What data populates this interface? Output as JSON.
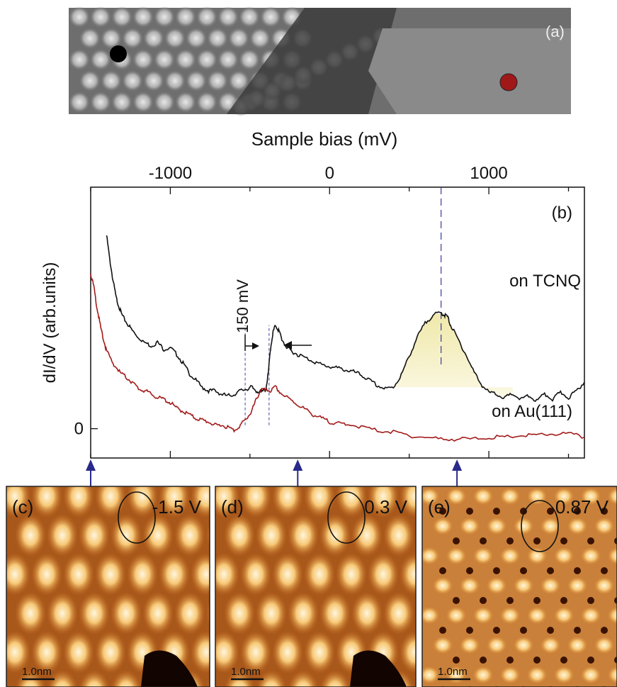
{
  "panel_a": {
    "label": "(a)",
    "marker_colors": {
      "tcnq": "#000000",
      "au": "#a01818"
    }
  },
  "chart_data": {
    "type": "line",
    "panel_label": "(b)",
    "xlabel": "Sample bias (mV)",
    "ylabel": "dI/dV (arb.units)",
    "xlim": [
      -1500,
      1600
    ],
    "ylim": [
      -0.17,
      1.4
    ],
    "x_ticks": [
      -1000,
      0,
      1000
    ],
    "x_tick_labels": [
      "-1000",
      "0",
      "1000"
    ],
    "y_tick_labels": [
      "0"
    ],
    "y_ticks": [
      0
    ],
    "annotation": "150 mV",
    "series": [
      {
        "name": "on TCNQ",
        "color": "#111111",
        "x": [
          -1400,
          -1380,
          -1360,
          -1340,
          -1320,
          -1300,
          -1270,
          -1240,
          -1200,
          -1160,
          -1120,
          -1080,
          -1040,
          -1000,
          -960,
          -920,
          -880,
          -840,
          -800,
          -760,
          -720,
          -680,
          -640,
          -600,
          -560,
          -520,
          -490,
          -460,
          -430,
          -400,
          -385,
          -370,
          -355,
          -340,
          -320,
          -300,
          -270,
          -240,
          -200,
          -150,
          -100,
          -50,
          0,
          50,
          100,
          150,
          200,
          250,
          300,
          350,
          400,
          450,
          500,
          550,
          600,
          650,
          700,
          720,
          740,
          760,
          800,
          850,
          900,
          950,
          1000,
          1050,
          1100,
          1150,
          1200,
          1250,
          1300,
          1350,
          1400,
          1450,
          1500,
          1550,
          1600
        ],
        "y": [
          1.12,
          0.98,
          0.86,
          0.76,
          0.7,
          0.65,
          0.61,
          0.57,
          0.53,
          0.5,
          0.48,
          0.5,
          0.46,
          0.47,
          0.43,
          0.38,
          0.32,
          0.28,
          0.24,
          0.22,
          0.22,
          0.2,
          0.19,
          0.2,
          0.22,
          0.23,
          0.24,
          0.22,
          0.21,
          0.23,
          0.32,
          0.47,
          0.56,
          0.6,
          0.57,
          0.52,
          0.47,
          0.45,
          0.43,
          0.41,
          0.39,
          0.37,
          0.36,
          0.35,
          0.34,
          0.33,
          0.31,
          0.28,
          0.25,
          0.23,
          0.24,
          0.31,
          0.42,
          0.53,
          0.61,
          0.66,
          0.67,
          0.66,
          0.65,
          0.6,
          0.53,
          0.44,
          0.34,
          0.26,
          0.21,
          0.2,
          0.18,
          0.2,
          0.17,
          0.19,
          0.16,
          0.2,
          0.17,
          0.21,
          0.18,
          0.22,
          0.27
        ]
      },
      {
        "name": "on Au(111)",
        "color": "#a31a1a",
        "x": [
          -1500,
          -1480,
          -1460,
          -1440,
          -1420,
          -1400,
          -1360,
          -1320,
          -1280,
          -1240,
          -1200,
          -1160,
          -1120,
          -1080,
          -1040,
          -1000,
          -960,
          -920,
          -880,
          -840,
          -800,
          -760,
          -720,
          -680,
          -640,
          -600,
          -560,
          -520,
          -490,
          -460,
          -430,
          -400,
          -370,
          -340,
          -300,
          -250,
          -200,
          -150,
          -100,
          -50,
          0,
          50,
          100,
          200,
          300,
          400,
          500,
          600,
          700,
          800,
          900,
          1000,
          1100,
          1200,
          1300,
          1400,
          1500,
          1600
        ],
        "y": [
          0.9,
          0.82,
          0.7,
          0.6,
          0.52,
          0.45,
          0.38,
          0.33,
          0.3,
          0.27,
          0.23,
          0.22,
          0.2,
          0.18,
          0.17,
          0.15,
          0.12,
          0.1,
          0.08,
          0.06,
          0.05,
          0.04,
          0.02,
          0.02,
          0.01,
          -0.01,
          0.02,
          0.06,
          0.1,
          0.17,
          0.23,
          0.22,
          0.22,
          0.24,
          0.2,
          0.17,
          0.14,
          0.11,
          0.08,
          0.06,
          0.04,
          0.03,
          0.03,
          0.01,
          -0.01,
          -0.02,
          -0.04,
          -0.05,
          -0.06,
          -0.06,
          -0.06,
          -0.05,
          -0.05,
          -0.04,
          -0.04,
          -0.03,
          -0.03,
          -0.05
        ]
      }
    ],
    "peak_marker_x": 700,
    "dashed_lines_x": [
      -530,
      -380
    ]
  },
  "panel_c": {
    "label": "(c)",
    "bias": "-1.5 V",
    "scale": "1.0nm"
  },
  "panel_d": {
    "label": "(d)",
    "bias": "0.3 V",
    "scale": "1.0nm"
  },
  "panel_e": {
    "label": "(e)",
    "bias": "0.87 V",
    "scale": "1.0nm"
  },
  "colors": {
    "highlight": "#f3efb8",
    "arrow": "#2a2a8a",
    "stm_bright": "#fbe7c0",
    "stm_dark": "#7a3a0a"
  }
}
